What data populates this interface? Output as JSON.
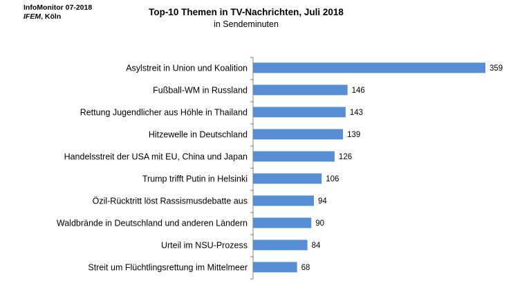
{
  "source": {
    "line1": "InfoMonitor  07-2018",
    "line2_italic": "IFEM",
    "line2_rest": ", Köln"
  },
  "chart_data": {
    "type": "bar",
    "orientation": "horizontal",
    "title": "Top-10 Themen in TV-Nachrichten, Juli 2018",
    "subtitle": "in Sendeminuten",
    "categories": [
      "Asylstreit in Union und Koalition",
      "Fußball-WM in Russland",
      "Rettung Jugendlicher aus Höhle in Thailand",
      "Hitzewelle in Deutschland",
      "Handelsstreit der USA mit EU, China und Japan",
      "Trump trifft Putin in Helsinki",
      "Özil-Rücktritt  löst Rassismusdebatte aus",
      "Waldbrände in Deutschland und anderen Ländern",
      "Urteil im NSU-Prozess",
      "Streit um Flüchtlingsrettung im Mittelmeer"
    ],
    "values": [
      359,
      146,
      143,
      139,
      126,
      106,
      94,
      90,
      84,
      68
    ],
    "xlim": [
      0,
      359
    ],
    "grid": false,
    "bar_color": "#558ED5"
  }
}
